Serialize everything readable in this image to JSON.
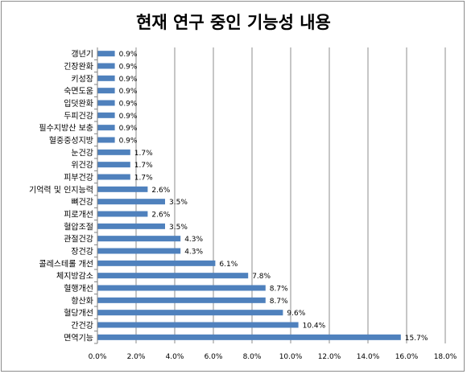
{
  "chart_data": {
    "type": "bar",
    "orientation": "horizontal",
    "title": "현재 연구 중인 기능성 내용",
    "xlabel": "",
    "ylabel": "",
    "xlim": [
      0,
      18
    ],
    "x_ticks": [
      "0.0%",
      "2.0%",
      "4.0%",
      "6.0%",
      "8.0%",
      "10.0%",
      "12.0%",
      "14.0%",
      "16.0%",
      "18.0%"
    ],
    "grid": "vertical",
    "legend": "none",
    "bar_color": "#4f81bd",
    "categories": [
      "갱년기",
      "긴장완화",
      "키성장",
      "숙면도움",
      "입덧완화",
      "두피건강",
      "필수지방산 보충",
      "혈중중성지방",
      "눈건강",
      "위건강",
      "피부건강",
      "기억력 및 인지능력",
      "뼈건강",
      "피로개선",
      "혈압조절",
      "관절건강",
      "장건강",
      "콜레스테롤 개선",
      "체지방감소",
      "혈행개선",
      "항산화",
      "혈당개선",
      "간건강",
      "면역기능"
    ],
    "values": [
      0.9,
      0.9,
      0.9,
      0.9,
      0.9,
      0.9,
      0.9,
      0.9,
      1.7,
      1.7,
      1.7,
      2.6,
      3.5,
      2.6,
      3.5,
      4.3,
      4.3,
      6.1,
      7.8,
      8.7,
      8.7,
      9.6,
      10.4,
      15.7
    ],
    "labels": [
      "0.9%",
      "0.9%",
      "0.9%",
      "0.9%",
      "0.9%",
      "0.9%",
      "0.9%",
      "0.9%",
      "1.7%",
      "1.7%",
      "1.7%",
      "2.6%",
      "3.5%",
      "2.6%",
      "3.5%",
      "4.3%",
      "4.3%",
      "6.1%",
      "7.8%",
      "8.7%",
      "8.7%",
      "9.6%",
      "10.4%",
      "15.7%"
    ]
  }
}
